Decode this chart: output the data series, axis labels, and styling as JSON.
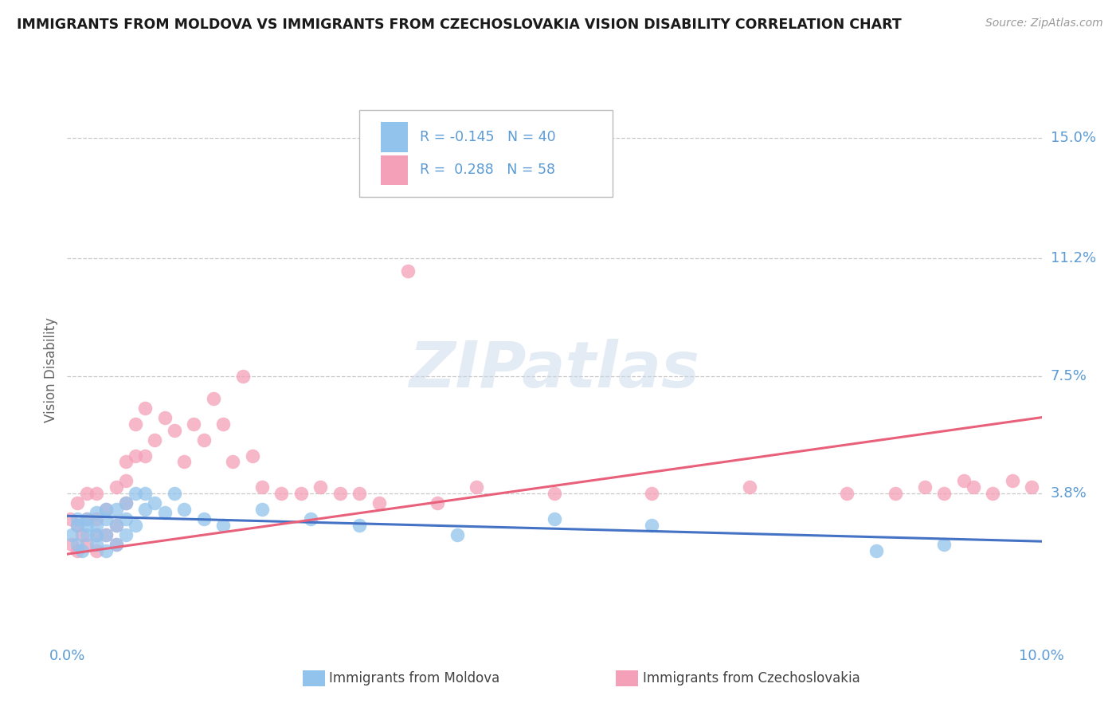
{
  "title": "IMMIGRANTS FROM MOLDOVA VS IMMIGRANTS FROM CZECHOSLOVAKIA VISION DISABILITY CORRELATION CHART",
  "source": "Source: ZipAtlas.com",
  "ylabel": "Vision Disability",
  "ytick_vals": [
    0.0,
    0.038,
    0.075,
    0.112,
    0.15
  ],
  "ytick_labels": [
    "",
    "3.8%",
    "7.5%",
    "11.2%",
    "15.0%"
  ],
  "xlim": [
    0.0,
    0.1
  ],
  "ylim": [
    -0.008,
    0.162
  ],
  "color_moldova": "#92C3EC",
  "color_czechoslovakia": "#F4A0B8",
  "color_line_moldova": "#4472C4",
  "color_line_czechoslovakia": "#E8607A",
  "color_axis": "#5B9BD5",
  "moldova_x": [
    0.0005,
    0.001,
    0.001,
    0.001,
    0.0015,
    0.002,
    0.002,
    0.002,
    0.003,
    0.003,
    0.003,
    0.003,
    0.004,
    0.004,
    0.004,
    0.004,
    0.005,
    0.005,
    0.005,
    0.006,
    0.006,
    0.006,
    0.007,
    0.007,
    0.008,
    0.008,
    0.009,
    0.01,
    0.011,
    0.012,
    0.014,
    0.016,
    0.02,
    0.025,
    0.03,
    0.04,
    0.05,
    0.06,
    0.083,
    0.09
  ],
  "moldova_y": [
    0.025,
    0.022,
    0.028,
    0.03,
    0.02,
    0.025,
    0.028,
    0.03,
    0.022,
    0.025,
    0.028,
    0.032,
    0.02,
    0.025,
    0.03,
    0.033,
    0.022,
    0.028,
    0.033,
    0.025,
    0.03,
    0.035,
    0.028,
    0.038,
    0.033,
    0.038,
    0.035,
    0.032,
    0.038,
    0.033,
    0.03,
    0.028,
    0.033,
    0.03,
    0.028,
    0.025,
    0.03,
    0.028,
    0.02,
    0.022
  ],
  "czechoslovakia_x": [
    0.0003,
    0.0005,
    0.001,
    0.001,
    0.001,
    0.0015,
    0.002,
    0.002,
    0.002,
    0.003,
    0.003,
    0.003,
    0.003,
    0.004,
    0.004,
    0.005,
    0.005,
    0.005,
    0.006,
    0.006,
    0.006,
    0.007,
    0.007,
    0.008,
    0.008,
    0.009,
    0.01,
    0.011,
    0.012,
    0.013,
    0.014,
    0.015,
    0.016,
    0.017,
    0.018,
    0.019,
    0.02,
    0.022,
    0.024,
    0.026,
    0.028,
    0.03,
    0.032,
    0.035,
    0.038,
    0.042,
    0.05,
    0.06,
    0.07,
    0.08,
    0.085,
    0.088,
    0.09,
    0.092,
    0.093,
    0.095,
    0.097,
    0.099
  ],
  "czechoslovakia_y": [
    0.03,
    0.022,
    0.02,
    0.028,
    0.035,
    0.025,
    0.022,
    0.03,
    0.038,
    0.02,
    0.025,
    0.03,
    0.038,
    0.025,
    0.033,
    0.022,
    0.028,
    0.04,
    0.035,
    0.042,
    0.048,
    0.05,
    0.06,
    0.05,
    0.065,
    0.055,
    0.062,
    0.058,
    0.048,
    0.06,
    0.055,
    0.068,
    0.06,
    0.048,
    0.075,
    0.05,
    0.04,
    0.038,
    0.038,
    0.04,
    0.038,
    0.038,
    0.035,
    0.108,
    0.035,
    0.04,
    0.038,
    0.038,
    0.04,
    0.038,
    0.038,
    0.04,
    0.038,
    0.042,
    0.04,
    0.038,
    0.042,
    0.04
  ]
}
